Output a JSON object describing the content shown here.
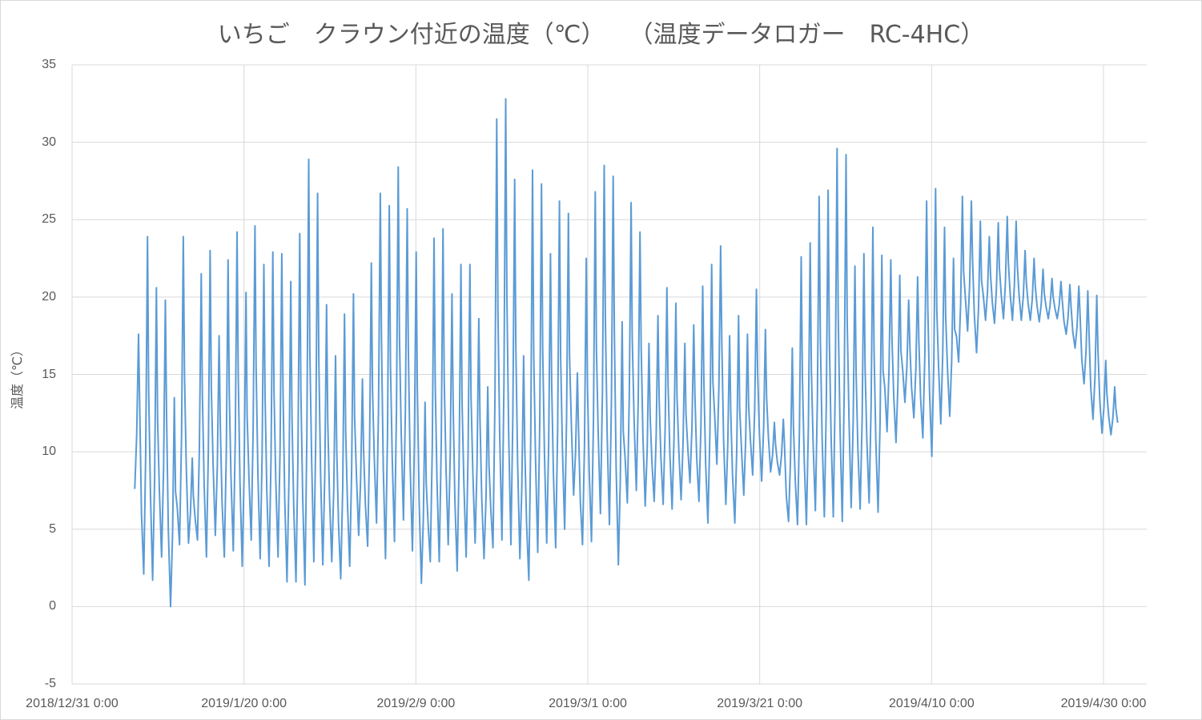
{
  "chart_data": {
    "type": "line",
    "title": "いちご　クラウン付近の温度（℃）　　（温度データロガー　RC-4HC）",
    "ylabel": "温度（℃）",
    "xlabel": "",
    "ylim": [
      -5,
      35
    ],
    "yticks": [
      -5,
      0,
      5,
      10,
      15,
      20,
      25,
      30,
      35
    ],
    "xlim": [
      "2018-12-31",
      "2019-04-30"
    ],
    "xtick_labels": [
      "2018/12/31 0:00",
      "2019/1/20 0:00",
      "2019/2/9 0:00",
      "2019/3/1 0:00",
      "2019/3/21 0:00",
      "2019/4/10 0:00",
      "2019/4/30 0:00"
    ],
    "grid": "horizontal",
    "legend": "none",
    "series_color": "#5b9bd5",
    "series": [
      {
        "x": [
          "2019-01-07",
          "2019-01-08",
          "2019-01-09",
          "2019-01-10",
          "2019-01-11",
          "2019-01-12",
          "2019-01-13",
          "2019-01-14",
          "2019-01-15",
          "2019-01-16",
          "2019-01-17",
          "2019-01-18",
          "2019-01-19",
          "2019-01-20",
          "2019-01-21",
          "2019-01-22",
          "2019-01-23",
          "2019-01-24",
          "2019-01-25",
          "2019-01-26",
          "2019-01-27",
          "2019-01-28",
          "2019-01-29",
          "2019-01-30",
          "2019-01-31",
          "2019-02-01",
          "2019-02-02",
          "2019-02-03",
          "2019-02-04",
          "2019-02-05",
          "2019-02-06",
          "2019-02-07",
          "2019-02-08",
          "2019-02-09",
          "2019-02-10",
          "2019-02-11",
          "2019-02-12",
          "2019-02-13",
          "2019-02-14",
          "2019-02-15",
          "2019-02-16",
          "2019-02-17",
          "2019-02-18",
          "2019-02-19",
          "2019-02-20",
          "2019-02-21",
          "2019-02-22",
          "2019-02-23",
          "2019-02-24",
          "2019-02-25",
          "2019-02-26",
          "2019-02-27",
          "2019-02-28",
          "2019-03-01",
          "2019-03-02",
          "2019-03-03",
          "2019-03-04",
          "2019-03-05",
          "2019-03-06",
          "2019-03-07",
          "2019-03-08",
          "2019-03-09",
          "2019-03-10",
          "2019-03-11",
          "2019-03-12",
          "2019-03-13",
          "2019-03-14",
          "2019-03-15",
          "2019-03-16",
          "2019-03-17",
          "2019-03-18",
          "2019-03-19",
          "2019-03-20",
          "2019-03-21",
          "2019-03-22",
          "2019-03-23",
          "2019-03-24",
          "2019-03-25",
          "2019-03-26",
          "2019-03-27",
          "2019-03-28",
          "2019-03-29",
          "2019-03-30",
          "2019-03-31",
          "2019-04-01",
          "2019-04-02",
          "2019-04-03",
          "2019-04-04",
          "2019-04-05",
          "2019-04-06",
          "2019-04-07",
          "2019-04-08",
          "2019-04-09",
          "2019-04-10",
          "2019-04-11",
          "2019-04-12",
          "2019-04-13",
          "2019-04-14",
          "2019-04-15",
          "2019-04-16",
          "2019-04-17",
          "2019-04-18",
          "2019-04-19",
          "2019-04-20",
          "2019-04-21",
          "2019-04-22",
          "2019-04-23",
          "2019-04-24",
          "2019-04-25",
          "2019-04-26"
        ],
        "max": [
          17.6,
          23.9,
          20.6,
          19.8,
          13.5,
          23.9,
          9.6,
          21.5,
          23.0,
          17.5,
          22.4,
          24.2,
          20.3,
          24.6,
          22.1,
          22.9,
          22.8,
          21.0,
          24.1,
          28.9,
          26.7,
          19.5,
          16.2,
          18.9,
          20.2,
          14.7,
          22.2,
          26.7,
          25.9,
          28.4,
          25.7,
          22.9,
          13.2,
          23.8,
          24.4,
          20.2,
          22.1,
          22.1,
          18.6,
          14.2,
          31.5,
          32.8,
          27.6,
          16.2,
          28.2,
          27.3,
          22.8,
          26.2,
          25.4,
          15.1,
          22.5,
          26.8,
          28.5,
          27.8,
          18.4,
          26.1,
          24.2,
          17.0,
          18.8,
          20.6,
          19.6,
          17.0,
          18.2,
          20.7,
          22.1,
          23.3,
          17.5,
          18.8,
          17.6,
          20.5,
          17.9,
          11.9,
          12.1,
          16.7,
          22.6,
          23.5,
          26.5,
          26.9,
          29.6,
          29.2,
          22.0,
          22.8,
          24.5,
          22.7,
          22.4,
          21.4,
          19.8,
          21.3,
          26.2,
          27.0,
          24.5,
          22.5,
          26.5,
          26.2,
          24.9,
          23.9,
          24.8,
          25.2,
          24.9,
          23.0,
          22.5,
          21.8,
          21.2,
          21.0,
          20.8,
          20.7,
          20.4,
          20.1,
          15.9,
          14.2
        ],
        "min": [
          7.6,
          2.1,
          1.7,
          3.2,
          0.0,
          4.0,
          4.1,
          4.3,
          3.2,
          4.6,
          3.2,
          3.6,
          2.6,
          4.3,
          3.1,
          2.6,
          3.2,
          1.6,
          1.6,
          1.4,
          2.9,
          2.7,
          2.9,
          1.8,
          2.6,
          4.6,
          3.9,
          5.4,
          3.1,
          4.2,
          5.6,
          3.6,
          1.5,
          2.9,
          2.9,
          4.0,
          2.3,
          3.2,
          4.1,
          3.1,
          3.8,
          4.3,
          4.0,
          3.1,
          1.7,
          3.5,
          4.1,
          3.8,
          5.0,
          7.2,
          4.0,
          4.2,
          6.0,
          5.3,
          2.7,
          6.7,
          7.5,
          6.5,
          6.8,
          6.6,
          6.3,
          6.9,
          8.0,
          6.8,
          5.4,
          9.2,
          6.6,
          5.4,
          7.2,
          8.5,
          8.1,
          8.7,
          8.5,
          5.5,
          5.3,
          5.3,
          6.2,
          5.8,
          5.8,
          5.5,
          6.4,
          6.3,
          6.7,
          6.1,
          11.3,
          10.6,
          13.2,
          12.2,
          10.9,
          9.7,
          11.8,
          12.3,
          15.8,
          17.8,
          16.4,
          18.5,
          18.3,
          18.6,
          18.5,
          18.5,
          18.5,
          18.4,
          18.6,
          18.6,
          17.6,
          16.7,
          14.4,
          12.1,
          11.2,
          11.1
        ]
      }
    ]
  }
}
